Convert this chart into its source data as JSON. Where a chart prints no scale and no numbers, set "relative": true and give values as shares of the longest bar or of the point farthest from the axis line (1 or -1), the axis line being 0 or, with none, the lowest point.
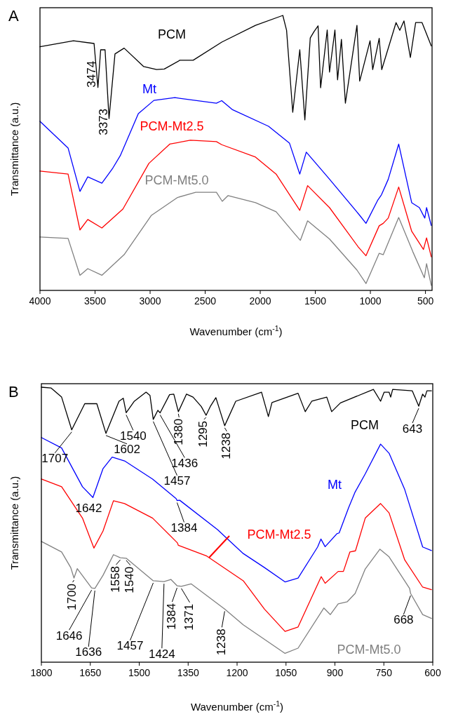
{
  "chart_data": [
    {
      "type": "line",
      "title": "A",
      "xlabel": "Wavenumber (cm$^{-1}$)",
      "ylabel": "Transmittance (a.u.)",
      "relative": true,
      "xlim": [
        4000,
        440
      ],
      "xticks": [
        4000,
        3500,
        3000,
        2500,
        2000,
        1500,
        1000,
        500
      ],
      "series": [
        {
          "name": "PCM",
          "color": "#000000",
          "x": [
            4000,
            3696,
            3509,
            3474,
            3449,
            3409,
            3373,
            3319,
            3236,
            3058,
            2941,
            2871,
            2730,
            2609,
            2349,
            2043,
            1795,
            1761,
            1705,
            1641,
            1595,
            1546,
            1512,
            1475,
            1452,
            1392,
            1371,
            1322,
            1298,
            1263,
            1227,
            1122,
            1097,
            1003,
            979,
            920,
            897,
            767,
            733,
            695,
            637,
            589,
            531,
            447
          ],
          "values": [
            0.886,
            0.908,
            0.898,
            0.738,
            0.875,
            0.875,
            0.625,
            0.86,
            0.881,
            0.814,
            0.803,
            0.805,
            0.837,
            0.837,
            0.903,
            0.964,
            1,
            0.946,
            0.648,
            0.875,
            0.62,
            0.918,
            0.941,
            0.962,
            0.737,
            0.947,
            0.794,
            0.947,
            0.766,
            0.913,
            0.681,
            0.964,
            0.761,
            0.908,
            0.803,
            0.917,
            0.803,
            0.974,
            0.946,
            0.98,
            0.847,
            0.974,
            0.974,
            0.889
          ]
        },
        {
          "name": "Mt",
          "color": "#0000ff",
          "x": [
            4000,
            3745,
            3637,
            3566,
            3438,
            3343,
            3271,
            3107,
            2966,
            2775,
            2398,
            2350,
            2255,
            1925,
            1735,
            1641,
            1582,
            1381,
            1097,
            1040,
            932,
            899,
            838,
            743,
            625,
            555,
            506,
            490,
            447
          ],
          "values": [
            0.615,
            0.518,
            0.36,
            0.413,
            0.39,
            0.442,
            0.49,
            0.643,
            0.691,
            0.701,
            0.681,
            0.69,
            0.658,
            0.597,
            0.536,
            0.423,
            0.503,
            0.409,
            0.273,
            0.244,
            0.329,
            0.348,
            0.404,
            0.532,
            0.319,
            0.301,
            0.263,
            0.301,
            0.236
          ]
        },
        {
          "name": "PCM-Mt2.5",
          "color": "#ff0000",
          "x": [
            4000,
            3745,
            3637,
            3566,
            3438,
            3247,
            3011,
            2822,
            2635,
            2398,
            2350,
            2043,
            1856,
            1641,
            1570,
            1371,
            1110,
            1040,
            920,
            883,
            838,
            743,
            625,
            518,
            490,
            447
          ],
          "values": [
            0.434,
            0.423,
            0.22,
            0.258,
            0.227,
            0.296,
            0.462,
            0.532,
            0.546,
            0.541,
            0.53,
            0.485,
            0.423,
            0.291,
            0.381,
            0.301,
            0.158,
            0.126,
            0.235,
            0.244,
            0.263,
            0.376,
            0.215,
            0.149,
            0.191,
            0.122
          ]
        },
        {
          "name": "PCM-Mt5.0",
          "color": "#808080",
          "x": [
            4000,
            3745,
            3637,
            3566,
            3438,
            3236,
            2988,
            2751,
            2586,
            2398,
            2345,
            2292,
            2043,
            1856,
            1690,
            1636,
            1570,
            1371,
            1122,
            1040,
            920,
            883,
            743,
            614,
            510,
            490,
            447
          ],
          "values": [
            0.194,
            0.189,
            0.055,
            0.079,
            0.055,
            0.13,
            0.273,
            0.338,
            0.357,
            0.357,
            0.324,
            0.345,
            0.319,
            0.286,
            0.207,
            0.182,
            0.253,
            0.187,
            0.074,
            0.025,
            0.135,
            0.13,
            0.265,
            0.14,
            0.046,
            0.097,
            0.018
          ]
        }
      ],
      "annotations": [
        {
          "text": "3474",
          "x": 3474,
          "y": 0.738
        },
        {
          "text": "3373",
          "x": 3373,
          "y": 0.625
        }
      ]
    },
    {
      "type": "line",
      "title": "B",
      "xlabel": "Wavenumber (cm$^{-1}$)",
      "ylabel": "Transmittance (a.u.)",
      "relative": true,
      "xlim": [
        1800,
        600
      ],
      "xticks": [
        1800,
        1650,
        1500,
        1350,
        1200,
        1050,
        900,
        750,
        600
      ],
      "series": [
        {
          "name": "PCM",
          "color": "#000000",
          "x": [
            1800,
            1770,
            1738,
            1707,
            1667,
            1630,
            1602,
            1562,
            1549,
            1540,
            1515,
            1479,
            1467,
            1457,
            1443,
            1436,
            1407,
            1394,
            1380,
            1355,
            1335,
            1310,
            1295,
            1282,
            1265,
            1238,
            1204,
            1125,
            1104,
            1093,
            1013,
            991,
            971,
            925,
            910,
            883,
            782,
            760,
            749,
            734,
            729,
            723,
            663,
            643,
            631,
            624,
            618,
            604
          ],
          "values": [
            1,
            0.997,
            0.964,
            0.845,
            0.94,
            0.94,
            0.832,
            0.949,
            0.96,
            0.907,
            0.949,
            0.982,
            0.97,
            0.883,
            0.916,
            0.907,
            0.973,
            0.975,
            0.911,
            0.975,
            0.964,
            0.93,
            0.898,
            0.93,
            0.962,
            0.86,
            0.949,
            0.982,
            0.893,
            0.944,
            0.978,
            0.911,
            0.949,
            0.964,
            0.911,
            0.943,
            0.992,
            0.949,
            0.982,
            0.982,
            0.964,
            0.992,
            0.987,
            0.931,
            0.975,
            0.964,
            0.987,
            0.987
          ]
        },
        {
          "name": "Mt",
          "color": "#0000ff",
          "x": [
            1800,
            1738,
            1674,
            1642,
            1611,
            1583,
            1545,
            1459,
            1387,
            1384,
            1376,
            1260,
            1181,
            1116,
            1053,
            1013,
            953,
            943,
            930,
            894,
            887,
            858,
            838,
            807,
            760,
            734,
            686,
            631,
            604
          ],
          "values": [
            0.817,
            0.779,
            0.638,
            0.599,
            0.704,
            0.746,
            0.732,
            0.666,
            0.595,
            0.588,
            0.589,
            0.482,
            0.395,
            0.344,
            0.292,
            0.306,
            0.419,
            0.448,
            0.42,
            0.467,
            0.47,
            0.562,
            0.619,
            0.685,
            0.793,
            0.76,
            0.628,
            0.419,
            0.406
          ]
        },
        {
          "name": "PCM-Mt2.5",
          "color": "#ff0000",
          "x": [
            1800,
            1738,
            1674,
            1639,
            1611,
            1579,
            1545,
            1459,
            1383,
            1380,
            1293,
            1181,
            1116,
            1053,
            1013,
            942,
            930,
            890,
            874,
            854,
            837,
            807,
            760,
            734,
            686,
            631,
            604
          ],
          "values": [
            0.666,
            0.638,
            0.524,
            0.415,
            0.477,
            0.587,
            0.577,
            0.524,
            0.434,
            0.425,
            0.386,
            0.296,
            0.193,
            0.112,
            0.128,
            0.311,
            0.287,
            0.33,
            0.33,
            0.401,
            0.405,
            0.524,
            0.577,
            0.543,
            0.372,
            0.273,
            0.264
          ]
        },
        {
          "name": "PCM-Mt5.0",
          "color": "#808080",
          "x": [
            1800,
            1738,
            1710,
            1700,
            1690,
            1646,
            1636,
            1611,
            1579,
            1558,
            1540,
            1457,
            1424,
            1403,
            1384,
            1371,
            1341,
            1238,
            1181,
            1053,
            1013,
            934,
            914,
            890,
            862,
            838,
            807,
            762,
            734,
            671,
            668,
            631,
            604
          ],
          "values": [
            0.439,
            0.401,
            0.344,
            0.306,
            0.34,
            0.27,
            0.268,
            0.316,
            0.391,
            0.38,
            0.378,
            0.296,
            0.293,
            0.301,
            0.278,
            0.276,
            0.285,
            0.193,
            0.136,
            0.032,
            0.051,
            0.197,
            0.173,
            0.212,
            0.22,
            0.25,
            0.339,
            0.411,
            0.383,
            0.268,
            0.25,
            0.173,
            0.159
          ]
        }
      ],
      "annotations": [
        {
          "text": "1707",
          "x": 1707,
          "y": 0.845
        },
        {
          "text": "1602",
          "x": 1602,
          "y": 0.832
        },
        {
          "text": "1540",
          "x": 1540,
          "y": 0.907
        },
        {
          "text": "1457",
          "x": 1457,
          "y": 0.883
        },
        {
          "text": "1436",
          "x": 1436,
          "y": 0.907
        },
        {
          "text": "1380",
          "x": 1380,
          "y": 0.911
        },
        {
          "text": "1295",
          "x": 1295,
          "y": 0.898
        },
        {
          "text": "1238",
          "x": 1238,
          "y": 0.86
        },
        {
          "text": "643",
          "x": 643,
          "y": 0.931
        },
        {
          "text": "1642",
          "x": 1642,
          "y": 0.599
        },
        {
          "text": "1384",
          "x": 1384,
          "y": 0.588
        },
        {
          "text": "1700",
          "x": 1700,
          "y": 0.306
        },
        {
          "text": "1646",
          "x": 1646,
          "y": 0.27
        },
        {
          "text": "1636",
          "x": 1636,
          "y": 0.268
        },
        {
          "text": "1558",
          "x": 1558,
          "y": 0.38
        },
        {
          "text": "1540",
          "x": 1540,
          "y": 0.378
        },
        {
          "text": "1457",
          "x": 1457,
          "y": 0.296
        },
        {
          "text": "1424",
          "x": 1424,
          "y": 0.293
        },
        {
          "text": "1384",
          "x": 1384,
          "y": 0.278
        },
        {
          "text": "1371",
          "x": 1371,
          "y": 0.276
        },
        {
          "text": "1238",
          "x": 1238,
          "y": 0.193
        },
        {
          "text": "668",
          "x": 668,
          "y": 0.25
        }
      ]
    }
  ]
}
